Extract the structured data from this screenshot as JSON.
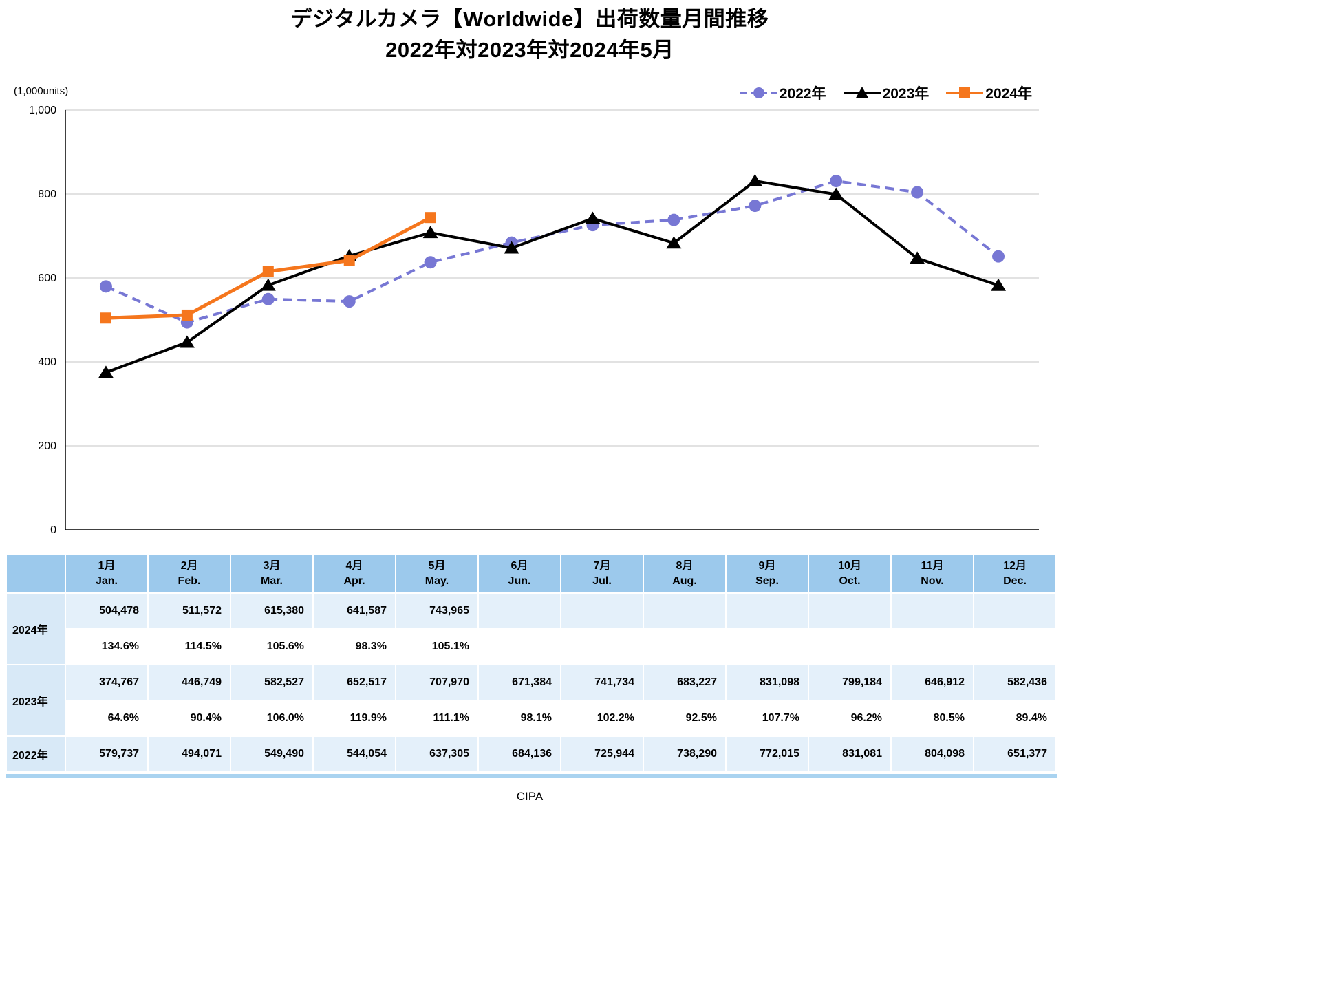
{
  "title": {
    "line1": "デジタルカメラ【Worldwide】出荷数量月間推移",
    "line2": "2022年対2023年対2024年5月"
  },
  "axis_unit": "(1,000units)",
  "footer": "CIPA",
  "colors": {
    "series_2022": "#7777D4",
    "series_2023": "#000000",
    "series_2024": "#F5761D",
    "grid": "#C6C6C6",
    "axis": "#000000",
    "table_header": "#9CC9EC",
    "table_label": "#D8E9F7",
    "table_value_row": "#E4F0FA"
  },
  "legend": [
    {
      "label": "2022年",
      "color": "#7777D4",
      "marker": "circle",
      "dash": true
    },
    {
      "label": "2023年",
      "color": "#000000",
      "marker": "triangle",
      "dash": false
    },
    {
      "label": "2024年",
      "color": "#F5761D",
      "marker": "square",
      "dash": false
    }
  ],
  "chart_data": {
    "type": "line",
    "title": "デジタルカメラ【Worldwide】出荷数量月間推移 2022年対2023年対2024年5月",
    "ylabel": "(1,000units)",
    "ylim": [
      0,
      1000
    ],
    "yticks": [
      0,
      200,
      400,
      600,
      800,
      1000
    ],
    "ytick_labels": [
      "0",
      "200",
      "400",
      "600",
      "800",
      "1,000"
    ],
    "grid": true,
    "legend_position": "top-right",
    "categories": [
      "1月",
      "2月",
      "3月",
      "4月",
      "5月",
      "6月",
      "7月",
      "8月",
      "9月",
      "10月",
      "11月",
      "12月"
    ],
    "series": [
      {
        "name": "2022年",
        "color": "#7777D4",
        "marker": "circle",
        "dash": true,
        "values": [
          579.737,
          494.071,
          549.49,
          544.054,
          637.305,
          684.136,
          725.944,
          738.29,
          772.015,
          831.081,
          804.098,
          651.377
        ]
      },
      {
        "name": "2023年",
        "color": "#000000",
        "marker": "triangle",
        "dash": false,
        "values": [
          374.767,
          446.749,
          582.527,
          652.517,
          707.97,
          671.384,
          741.734,
          683.227,
          831.098,
          799.184,
          646.912,
          582.436
        ]
      },
      {
        "name": "2024年",
        "color": "#F5761D",
        "marker": "square",
        "dash": false,
        "values": [
          504.478,
          511.572,
          615.38,
          641.587,
          743.965,
          null,
          null,
          null,
          null,
          null,
          null,
          null
        ]
      }
    ]
  },
  "table": {
    "col_header": [
      {
        "jp": "1月",
        "en": "Jan."
      },
      {
        "jp": "2月",
        "en": "Feb."
      },
      {
        "jp": "3月",
        "en": "Mar."
      },
      {
        "jp": "4月",
        "en": "Apr."
      },
      {
        "jp": "5月",
        "en": "May."
      },
      {
        "jp": "6月",
        "en": "Jun."
      },
      {
        "jp": "7月",
        "en": "Jul."
      },
      {
        "jp": "8月",
        "en": "Aug."
      },
      {
        "jp": "9月",
        "en": "Sep."
      },
      {
        "jp": "10月",
        "en": "Oct."
      },
      {
        "jp": "11月",
        "en": "Nov."
      },
      {
        "jp": "12月",
        "en": "Dec."
      }
    ],
    "rows": [
      {
        "label": "2024年",
        "values": [
          "504,478",
          "511,572",
          "615,380",
          "641,587",
          "743,965",
          "",
          "",
          "",
          "",
          "",
          "",
          ""
        ],
        "pct": [
          "134.6%",
          "114.5%",
          "105.6%",
          "98.3%",
          "105.1%",
          "",
          "",
          "",
          "",
          "",
          "",
          ""
        ]
      },
      {
        "label": "2023年",
        "values": [
          "374,767",
          "446,749",
          "582,527",
          "652,517",
          "707,970",
          "671,384",
          "741,734",
          "683,227",
          "831,098",
          "799,184",
          "646,912",
          "582,436"
        ],
        "pct": [
          "64.6%",
          "90.4%",
          "106.0%",
          "119.9%",
          "111.1%",
          "98.1%",
          "102.2%",
          "92.5%",
          "107.7%",
          "96.2%",
          "80.5%",
          "89.4%"
        ]
      },
      {
        "label": "2022年",
        "values": [
          "579,737",
          "494,071",
          "549,490",
          "544,054",
          "637,305",
          "684,136",
          "725,944",
          "738,290",
          "772,015",
          "831,081",
          "804,098",
          "651,377"
        ]
      }
    ]
  }
}
